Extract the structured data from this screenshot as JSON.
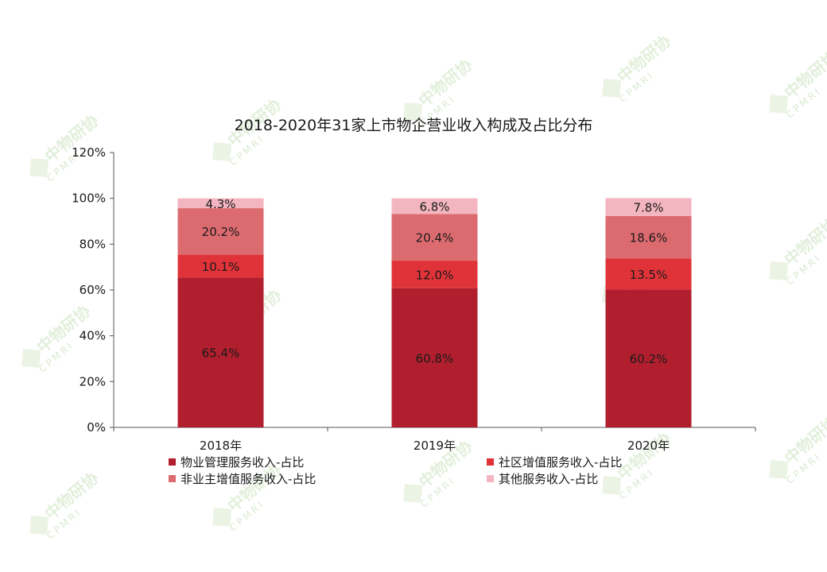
{
  "chart_data": {
    "type": "bar",
    "stacked": true,
    "title": "2018-2020年31家上市物企营业收入构成及占比分布",
    "categories": [
      "2018年",
      "2019年",
      "2020年"
    ],
    "ylim": [
      0,
      120
    ],
    "yticks": [
      "0%",
      "20%",
      "40%",
      "60%",
      "80%",
      "100%",
      "120%"
    ],
    "ytick_values": [
      0,
      20,
      40,
      60,
      80,
      100,
      120
    ],
    "grid": false,
    "legend_position": "bottom",
    "series": [
      {
        "name": "物业管理服务收入-占比",
        "color": "#b11f2e",
        "values": [
          65.4,
          60.8,
          60.2
        ],
        "labels": [
          "65.4%",
          "60.8%",
          "60.2%"
        ]
      },
      {
        "name": "社区增值服务收入-占比",
        "color": "#e03339",
        "values": [
          10.1,
          12.0,
          13.5
        ],
        "labels": [
          "10.1%",
          "12.0%",
          "13.5%"
        ]
      },
      {
        "name": "非业主增值服务收入-占比",
        "color": "#dc6b70",
        "values": [
          20.2,
          20.4,
          18.6
        ],
        "labels": [
          "20.2%",
          "20.4%",
          "18.6%"
        ]
      },
      {
        "name": "其他服务收入-占比",
        "color": "#f3b5bf",
        "values": [
          4.3,
          6.8,
          7.8
        ],
        "labels": [
          "4.3%",
          "6.8%",
          "7.8%"
        ]
      }
    ]
  },
  "watermark": {
    "text": "中物研协",
    "sub": "CPMRI"
  }
}
